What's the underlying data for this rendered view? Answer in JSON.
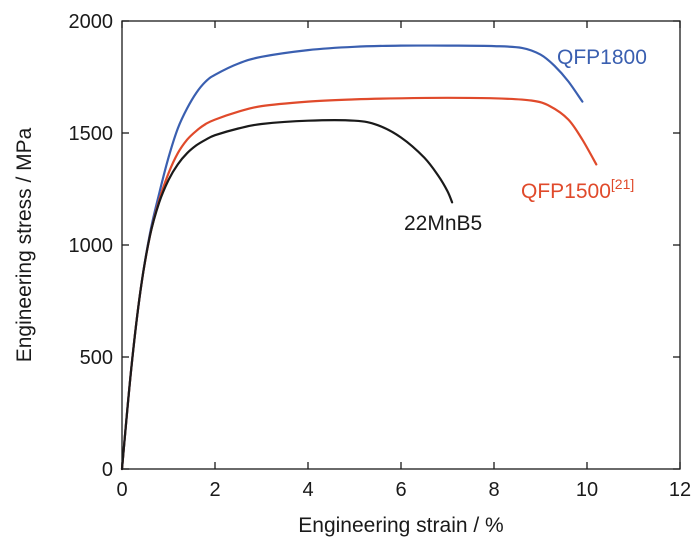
{
  "chart_data": {
    "type": "line",
    "title": "",
    "xlabel": "Engineering strain / %",
    "ylabel": "Engineering stress / MPa",
    "xlim": [
      0,
      12
    ],
    "ylim": [
      0,
      2000
    ],
    "xticks": [
      0,
      2,
      4,
      6,
      8,
      10,
      12
    ],
    "yticks": [
      0,
      500,
      1000,
      1500,
      2000
    ],
    "xtick_labels": [
      "0",
      "2",
      "4",
      "6",
      "8",
      "10",
      "12"
    ],
    "ytick_labels": [
      "0",
      "500",
      "1000",
      "1500",
      "2000"
    ],
    "grid": false,
    "legend": "none",
    "series": [
      {
        "name": "QFP1800",
        "color": "#3a5fb0",
        "x": [
          0,
          0.2,
          0.4,
          0.6,
          0.8,
          1.0,
          1.2,
          1.4,
          1.6,
          1.8,
          2.0,
          2.5,
          3.0,
          4.0,
          5.0,
          6.0,
          7.0,
          8.0,
          8.6,
          9.0,
          9.3,
          9.6,
          9.9
        ],
        "y": [
          0,
          450,
          800,
          1050,
          1230,
          1390,
          1520,
          1610,
          1680,
          1730,
          1760,
          1810,
          1840,
          1870,
          1885,
          1890,
          1890,
          1888,
          1880,
          1850,
          1800,
          1730,
          1640
        ]
      },
      {
        "name": "QFP1500",
        "name_superscript": "[21]",
        "color": "#e04a2b",
        "x": [
          0,
          0.2,
          0.4,
          0.6,
          0.8,
          1.0,
          1.2,
          1.4,
          1.6,
          1.8,
          2.0,
          2.5,
          3.0,
          4.0,
          5.0,
          6.0,
          7.0,
          8.0,
          8.8,
          9.2,
          9.6,
          9.9,
          10.2
        ],
        "y": [
          0,
          450,
          800,
          1040,
          1200,
          1320,
          1410,
          1470,
          1510,
          1540,
          1560,
          1595,
          1620,
          1640,
          1650,
          1655,
          1657,
          1655,
          1645,
          1620,
          1560,
          1470,
          1360
        ]
      },
      {
        "name": "22MnB5",
        "color": "#1a1a1a",
        "x": [
          0,
          0.2,
          0.4,
          0.6,
          0.8,
          1.0,
          1.2,
          1.4,
          1.6,
          1.8,
          2.0,
          2.5,
          3.0,
          4.0,
          5.0,
          5.5,
          6.0,
          6.5,
          6.8,
          7.0,
          7.1
        ],
        "y": [
          0,
          450,
          800,
          1040,
          1190,
          1290,
          1360,
          1410,
          1445,
          1470,
          1490,
          1520,
          1540,
          1555,
          1555,
          1535,
          1480,
          1390,
          1310,
          1240,
          1190
        ]
      }
    ]
  }
}
